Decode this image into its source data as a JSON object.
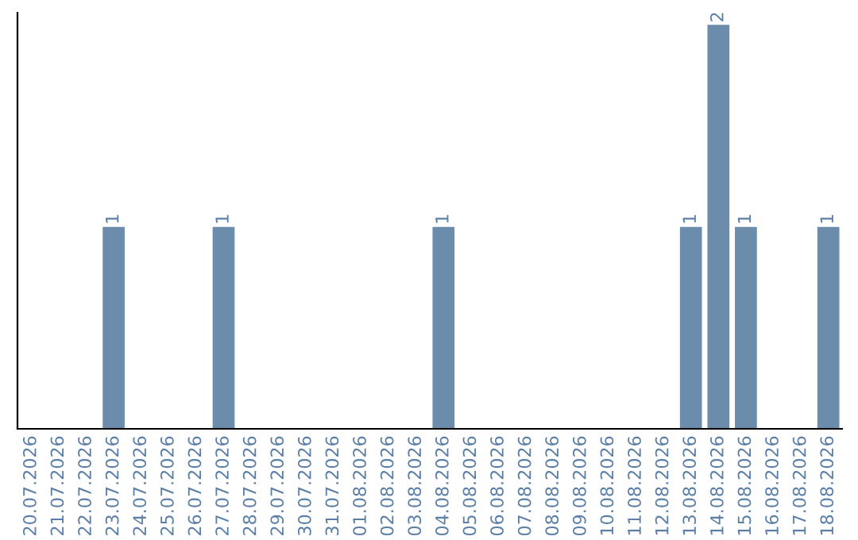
{
  "chart_data": {
    "type": "bar",
    "categories": [
      "20.07.2026",
      "21.07.2026",
      "22.07.2026",
      "23.07.2026",
      "24.07.2026",
      "25.07.2026",
      "26.07.2026",
      "27.07.2026",
      "28.07.2026",
      "29.07.2026",
      "30.07.2026",
      "31.07.2026",
      "01.08.2026",
      "02.08.2026",
      "03.08.2026",
      "04.08.2026",
      "05.08.2026",
      "06.08.2026",
      "07.08.2026",
      "08.08.2026",
      "09.08.2026",
      "10.08.2026",
      "11.08.2026",
      "12.08.2026",
      "13.08.2026",
      "14.08.2026",
      "15.08.2026",
      "16.08.2026",
      "17.08.2026",
      "18.08.2026"
    ],
    "values": [
      0,
      0,
      0,
      1,
      0,
      0,
      0,
      1,
      0,
      0,
      0,
      0,
      0,
      0,
      0,
      1,
      0,
      0,
      0,
      0,
      0,
      0,
      0,
      0,
      1,
      2,
      1,
      0,
      0,
      1
    ],
    "value_labels": [
      null,
      null,
      null,
      "1",
      null,
      null,
      null,
      "1",
      null,
      null,
      null,
      null,
      null,
      null,
      null,
      "1",
      null,
      null,
      null,
      null,
      null,
      null,
      null,
      null,
      "1",
      "2",
      "1",
      null,
      null,
      "1"
    ],
    "color": "#6b8cab",
    "tick_labels": "x",
    "grid": false,
    "legend": false
  }
}
